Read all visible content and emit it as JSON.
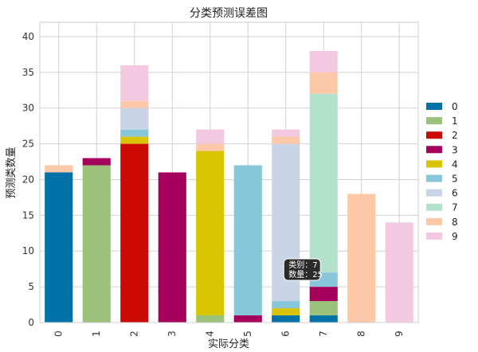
{
  "chart_data": {
    "type": "bar",
    "stacked": true,
    "title": "分类预测误差图",
    "xlabel": "实际分类",
    "ylabel": "预测类数量",
    "ylim": [
      0,
      42
    ],
    "yticks": [
      0,
      5,
      10,
      15,
      20,
      25,
      30,
      35,
      40
    ],
    "grid": true,
    "legend_position": "right",
    "categories": [
      "0",
      "1",
      "2",
      "3",
      "4",
      "5",
      "6",
      "7",
      "8",
      "9"
    ],
    "series": [
      {
        "name": "0",
        "color": "#0072a8",
        "values": [
          21,
          0,
          0,
          0,
          0,
          0,
          1,
          1,
          0,
          0
        ]
      },
      {
        "name": "1",
        "color": "#9bc27a",
        "values": [
          0,
          22,
          0,
          0,
          1,
          0,
          0,
          2,
          0,
          0
        ]
      },
      {
        "name": "2",
        "color": "#cc0a05",
        "values": [
          0,
          0,
          25,
          0,
          0,
          0,
          0,
          0,
          0,
          0
        ]
      },
      {
        "name": "3",
        "color": "#a5005b",
        "values": [
          0,
          1,
          0,
          21,
          0,
          1,
          0,
          2,
          0,
          0
        ]
      },
      {
        "name": "4",
        "color": "#d8c400",
        "values": [
          0,
          0,
          1,
          0,
          23,
          0,
          1,
          0,
          0,
          0
        ]
      },
      {
        "name": "5",
        "color": "#88c6da",
        "values": [
          0,
          0,
          1,
          0,
          0,
          21,
          1,
          2,
          0,
          0
        ]
      },
      {
        "name": "6",
        "color": "#c9d4e7",
        "values": [
          0,
          0,
          3,
          0,
          0,
          0,
          22,
          0,
          0,
          0
        ]
      },
      {
        "name": "7",
        "color": "#b2e2cc",
        "values": [
          0,
          0,
          0,
          0,
          0,
          0,
          0,
          25,
          0,
          0
        ]
      },
      {
        "name": "8",
        "color": "#fcc8a8",
        "values": [
          1,
          0,
          1,
          0,
          1,
          0,
          1,
          3,
          18,
          0
        ]
      },
      {
        "name": "9",
        "color": "#f3c9e1",
        "values": [
          0,
          0,
          5,
          0,
          2,
          0,
          1,
          3,
          0,
          14
        ]
      }
    ],
    "tooltip": {
      "category": "7",
      "series": "7",
      "line1": "类别：7",
      "line2": "数量：25"
    }
  }
}
